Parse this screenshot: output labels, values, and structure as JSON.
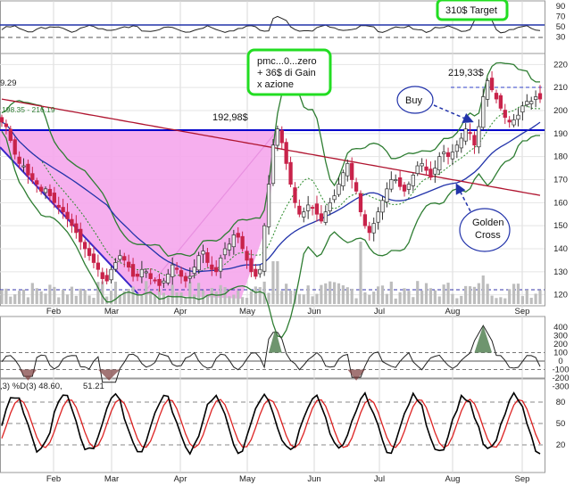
{
  "chart_data": {
    "type": "candlestick",
    "x_tick_labels": [
      "Feb",
      "Mar",
      "Apr",
      "May",
      "Jun",
      "Jul",
      "Aug",
      "Sep"
    ],
    "panels": {
      "top_indicator": {
        "y_ticks": [
          30,
          50,
          70,
          90
        ],
        "levels": {
          "high_line": 70,
          "mid_line": 50,
          "low_line": 30
        },
        "annotation": "310$ Target"
      },
      "price": {
        "y_ticks": [
          120,
          130,
          140,
          150,
          160,
          170,
          180,
          190,
          200,
          210,
          220
        ],
        "ylim": [
          116,
          224
        ],
        "header_left": "9.29",
        "band_labels": "198.35 - 216.19",
        "levels": {
          "resistance": 192.98,
          "high": 219.33,
          "bottom_line": 120
        },
        "annotations": [
          {
            "id": "resistance_label",
            "text": "192,98$"
          },
          {
            "id": "high_label",
            "text": "219,33$"
          },
          {
            "id": "gain_box",
            "lines": [
              "pmc...0...zero",
              "+ 36$ di Gain",
              "x azione"
            ]
          },
          {
            "id": "buy_bubble",
            "text": "Buy"
          },
          {
            "id": "golden_cross",
            "lines": [
              "Golden",
              "Cross"
            ]
          }
        ],
        "close_series": [
          195,
          193,
          187,
          181,
          177,
          176,
          172,
          170,
          168,
          165,
          166,
          163,
          160,
          158,
          156,
          153,
          150,
          147,
          143,
          140,
          137,
          134,
          131,
          127,
          126,
          131,
          134,
          137,
          135,
          132,
          128,
          128,
          131,
          130,
          127,
          126,
          124,
          126,
          129,
          133,
          131,
          128,
          126,
          128,
          132,
          137,
          139,
          134,
          131,
          130,
          136,
          140,
          142,
          146,
          145,
          140,
          135,
          130,
          128,
          131,
          150,
          168,
          185,
          192,
          186,
          177,
          168,
          160,
          155,
          156,
          159,
          158,
          155,
          152,
          156,
          160,
          163,
          168,
          173,
          177,
          170,
          165,
          156,
          150,
          147,
          151,
          156,
          161,
          166,
          170,
          170,
          167,
          165,
          168,
          172,
          176,
          177,
          174,
          171,
          175,
          180,
          182,
          180,
          182,
          185,
          188,
          192,
          190,
          185,
          193,
          206,
          213,
          209,
          205,
          201,
          197,
          195,
          196,
          198,
          202,
          204,
          204,
          206,
          205
        ]
      },
      "cci": {
        "y_ticks": [
          -300,
          -200,
          -100,
          0,
          100,
          200,
          300,
          400
        ],
        "ylim": [
          -300,
          400
        ]
      },
      "stochastic": {
        "header": ",3) %D(3) 48.60,",
        "header_value_red": "51.21",
        "y_ticks": [
          20,
          50,
          80
        ]
      }
    },
    "colors": {
      "up": "#f0f0f0",
      "down": "#c8234a",
      "band": "#2e7d32",
      "ma_long": "#b01530",
      "ma_mid": "#2233aa",
      "pink_fill": "#f5a6ec",
      "resistance": "#0000cc",
      "highlight": "#22dd22",
      "stoch_k": "#000000",
      "stoch_d": "#dd2222"
    }
  }
}
